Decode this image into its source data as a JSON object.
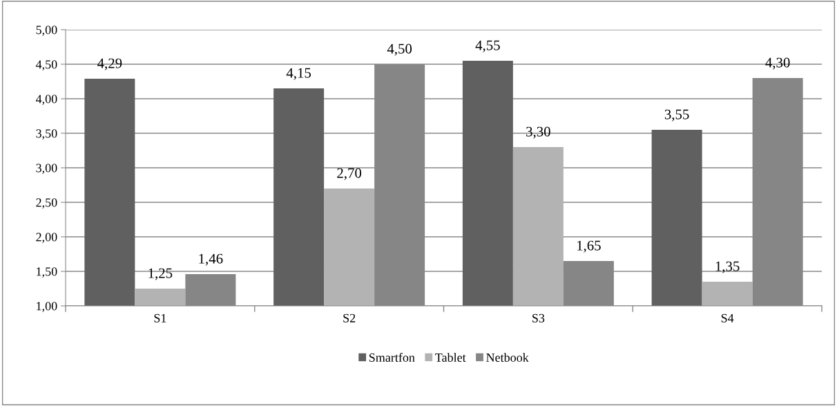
{
  "chart_data": {
    "type": "bar",
    "categories": [
      "S1",
      "S2",
      "S3",
      "S4"
    ],
    "series": [
      {
        "name": "Smartfon",
        "color": "#606060",
        "values": [
          4.29,
          4.15,
          4.55,
          3.55
        ],
        "value_labels": [
          "4,29",
          "4,15",
          "4,55",
          "3,55"
        ]
      },
      {
        "name": "Tablet",
        "color": "#b3b3b3",
        "values": [
          1.25,
          2.7,
          3.3,
          1.35
        ],
        "value_labels": [
          "1,25",
          "2,70",
          "3,30",
          "1,35"
        ]
      },
      {
        "name": "Netbook",
        "color": "#868686",
        "values": [
          1.46,
          4.5,
          1.65,
          4.3
        ],
        "value_labels": [
          "1,46",
          "4,50",
          "1,65",
          "4,30"
        ]
      }
    ],
    "ylim": [
      1.0,
      5.0
    ],
    "yticks": [
      {
        "value": 1.0,
        "label": "1,00"
      },
      {
        "value": 1.5,
        "label": "1,50"
      },
      {
        "value": 2.0,
        "label": "2,00"
      },
      {
        "value": 2.5,
        "label": "2,50"
      },
      {
        "value": 3.0,
        "label": "3,00"
      },
      {
        "value": 3.5,
        "label": "3,50"
      },
      {
        "value": 4.0,
        "label": "4,00"
      },
      {
        "value": 4.5,
        "label": "4,50"
      },
      {
        "value": 5.0,
        "label": "5,00"
      }
    ],
    "grid": "y",
    "legend": "bottom"
  }
}
